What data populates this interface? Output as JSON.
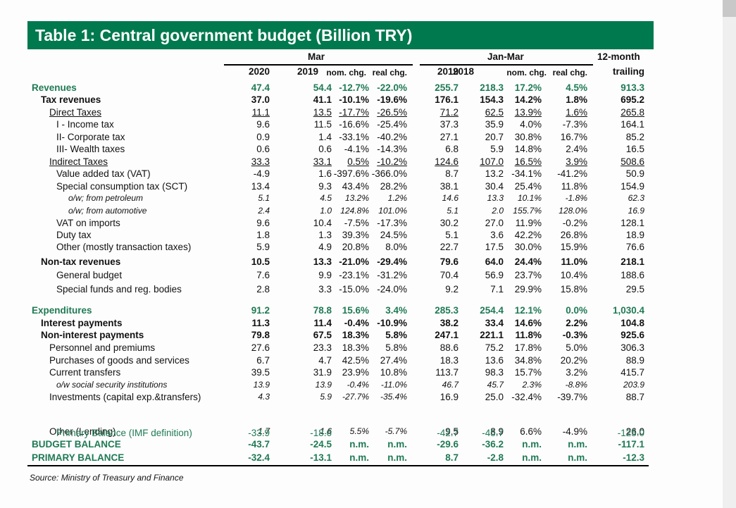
{
  "title": "Table 1:  Central government budget (Billion TRY)",
  "header": {
    "group_mar": "Mar",
    "group_janmar": "Jan-Mar",
    "group_trailing_1": "12-month",
    "group_trailing_2": "trailing",
    "cols": [
      "2020",
      "2019",
      "nom. chg.",
      "real chg.",
      "2019",
      "2018",
      "nom. chg.",
      "real chg.",
      "trailing"
    ]
  },
  "rows": [
    {
      "label": "Revenues",
      "style": "green bold",
      "indent": 0,
      "values": [
        "47.4",
        "54.4",
        "-12.7%",
        "-22.0%",
        "255.7",
        "218.3",
        "17.2%",
        "4.5%",
        "913.3"
      ]
    },
    {
      "label": "Tax revenues",
      "style": "bold",
      "indent": 1,
      "values": [
        "37.0",
        "41.1",
        "-10.1%",
        "-19.6%",
        "176.1",
        "154.3",
        "14.2%",
        "1.8%",
        "695.2"
      ]
    },
    {
      "label": "Direct Taxes",
      "style": "uline",
      "indent": 2,
      "values": [
        "11.1",
        "13.5",
        "-17.7%",
        "-26.5%",
        "71.2",
        "62.5",
        "13.9%",
        "1.6%",
        "265.8"
      ]
    },
    {
      "label": "I - Income tax",
      "style": "",
      "indent": 3,
      "values": [
        "9.6",
        "11.5",
        "-16.6%",
        "-25.4%",
        "37.3",
        "35.9",
        "4.0%",
        "-7.3%",
        "164.1"
      ]
    },
    {
      "label": "II- Corporate tax",
      "style": "",
      "indent": 3,
      "values": [
        "0.9",
        "1.4",
        "-33.1%",
        "-40.2%",
        "27.1",
        "20.7",
        "30.8%",
        "16.7%",
        "85.2"
      ]
    },
    {
      "label": "III- Wealth taxes",
      "style": "",
      "indent": 3,
      "values": [
        "0.6",
        "0.6",
        "-4.1%",
        "-14.3%",
        "6.8",
        "5.9",
        "14.8%",
        "2.4%",
        "16.5"
      ]
    },
    {
      "label": "Indirect Taxes",
      "style": "uline",
      "indent": 2,
      "values": [
        "33.3",
        "33.1",
        "0.5%",
        "-10.2%",
        "124.6",
        "107.0",
        "16.5%",
        "3.9%",
        "508.6"
      ]
    },
    {
      "label": "Value added tax (VAT)",
      "style": "",
      "indent": 3,
      "values": [
        "-4.9",
        "1.6",
        "-397.6%",
        "-366.0%",
        "8.7",
        "13.2",
        "-34.1%",
        "-41.2%",
        "50.9"
      ]
    },
    {
      "label": "Special consumption tax (SCT)",
      "style": "",
      "indent": 3,
      "values": [
        "13.4",
        "9.3",
        "43.4%",
        "28.2%",
        "38.1",
        "30.4",
        "25.4%",
        "11.8%",
        "154.9"
      ]
    },
    {
      "label": "o/w; from petroleum",
      "style": "italic",
      "indent": 4,
      "values": [
        "5.1",
        "4.5",
        "13.2%",
        "1.2%",
        "14.6",
        "13.3",
        "10.1%",
        "-1.8%",
        "62.3"
      ]
    },
    {
      "label": "o/w; from automotive",
      "style": "italic",
      "indent": 4,
      "values": [
        "2.4",
        "1.0",
        "124.8%",
        "101.0%",
        "5.1",
        "2.0",
        "155.7%",
        "128.0%",
        "16.9"
      ]
    },
    {
      "label": "VAT on imports",
      "style": "",
      "indent": 3,
      "values": [
        "9.6",
        "10.4",
        "-7.5%",
        "-17.3%",
        "30.2",
        "27.0",
        "11.9%",
        "-0.2%",
        "128.1"
      ]
    },
    {
      "label": "Duty tax",
      "style": "",
      "indent": 3,
      "values": [
        "1.8",
        "1.3",
        "39.3%",
        "24.5%",
        "5.1",
        "3.6",
        "42.2%",
        "26.8%",
        "18.9"
      ]
    },
    {
      "label": "Other (mostly transaction taxes)",
      "style": "",
      "indent": 3,
      "values": [
        "5.9",
        "4.9",
        "20.8%",
        "8.0%",
        "22.7",
        "17.5",
        "30.0%",
        "15.9%",
        "76.6"
      ]
    },
    {
      "label": "Non-tax revenues",
      "style": "bold",
      "indent": 1,
      "values": [
        "10.5",
        "13.3",
        "-21.0%",
        "-29.4%",
        "79.6",
        "64.0",
        "24.4%",
        "11.0%",
        "218.1"
      ]
    },
    {
      "label": "General budget",
      "style": "",
      "indent": 3,
      "values": [
        "7.6",
        "9.9",
        "-23.1%",
        "-31.2%",
        "70.4",
        "56.9",
        "23.7%",
        "10.4%",
        "188.6"
      ]
    },
    {
      "label": "Special funds and reg. bodies",
      "style": "",
      "indent": 3,
      "values": [
        "2.8",
        "3.3",
        "-15.0%",
        "-24.0%",
        "9.2",
        "7.1",
        "29.9%",
        "15.8%",
        "29.5"
      ]
    },
    {
      "label": "Expenditures",
      "style": "green bold",
      "indent": 0,
      "values": [
        "91.2",
        "78.8",
        "15.6%",
        "3.4%",
        "285.3",
        "254.4",
        "12.1%",
        "0.0%",
        "1,030.4"
      ]
    },
    {
      "label": "Interest payments",
      "style": "bold",
      "indent": 1,
      "values": [
        "11.3",
        "11.4",
        "-0.4%",
        "-10.9%",
        "38.2",
        "33.4",
        "14.6%",
        "2.2%",
        "104.8"
      ]
    },
    {
      "label": "Non-interest payments",
      "style": "bold",
      "indent": 1,
      "values": [
        "79.8",
        "67.5",
        "18.3%",
        "5.8%",
        "247.1",
        "221.1",
        "11.8%",
        "-0.3%",
        "925.6"
      ]
    },
    {
      "label": "Personnel and premiums",
      "style": "",
      "indent": 2,
      "values": [
        "27.6",
        "23.3",
        "18.3%",
        "5.8%",
        "88.6",
        "75.2",
        "17.8%",
        "5.0%",
        "306.3"
      ]
    },
    {
      "label": "Purchases of goods and services",
      "style": "",
      "indent": 2,
      "values": [
        "6.7",
        "4.7",
        "42.5%",
        "27.4%",
        "18.3",
        "13.6",
        "34.8%",
        "20.2%",
        "88.9"
      ]
    },
    {
      "label": "Current transfers",
      "style": "",
      "indent": 2,
      "values": [
        "39.5",
        "31.9",
        "23.9%",
        "10.8%",
        "113.7",
        "98.3",
        "15.7%",
        "3.2%",
        "415.7"
      ]
    },
    {
      "label": "o/w social security institutions",
      "style": "italic",
      "indent": 3,
      "values": [
        "13.9",
        "13.9",
        "-0.4%",
        "-11.0%",
        "46.7",
        "45.7",
        "2.3%",
        "-8.8%",
        "203.9"
      ]
    },
    {
      "label": "Investments (capital exp.&transfers)",
      "style": "mixed",
      "indent": 2,
      "values": [
        "4.3",
        "5.9",
        "-27.7%",
        "-35.4%",
        "16.9",
        "25.0",
        "-32.4%",
        "-39.7%",
        "88.7"
      ]
    },
    {
      "label": "Other (Lending)",
      "style": "mixed",
      "indent": 2,
      "values": [
        "1.7",
        "1.6",
        "5.5%",
        "-5.7%",
        "9.5",
        "8.9",
        "6.6%",
        "-4.9%",
        "26.0"
      ]
    },
    {
      "label": "BUDGET BALANCE",
      "style": "green bold",
      "indent": 0,
      "values": [
        "-43.7",
        "-24.5",
        "n.m.",
        "n.m.",
        "-29.6",
        "-36.2",
        "n.m.",
        "n.m.",
        "-117.1"
      ]
    },
    {
      "label": "PRIMARY BALANCE",
      "style": "green bold",
      "indent": 0,
      "values": [
        "-32.4",
        "-13.1",
        "n.m.",
        "n.m.",
        "8.7",
        "-2.8",
        "n.m.",
        "n.m.",
        "-12.3"
      ]
    },
    {
      "label": "Primary Balance (IMF definition)",
      "style": "green",
      "indent": 3,
      "values": [
        "-33.9",
        "-18.6",
        "",
        "",
        "-42.7",
        "-45.7",
        "",
        "",
        "-125.0"
      ]
    }
  ],
  "source": "Source: Ministry of Treasury and Finance"
}
